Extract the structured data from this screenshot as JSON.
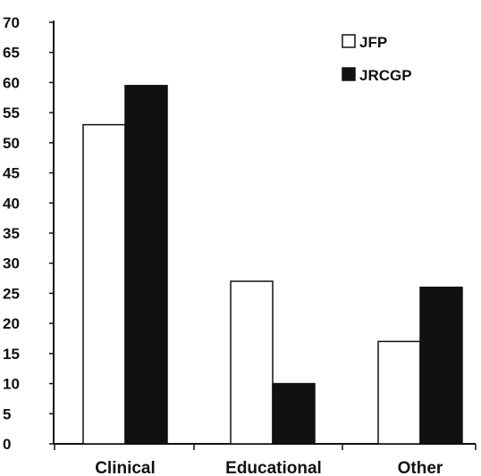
{
  "chart_data": {
    "type": "bar",
    "categories": [
      "Clinical",
      "Educational",
      "Other"
    ],
    "series": [
      {
        "name": "JFP",
        "values": [
          53,
          27,
          17
        ],
        "fill": "#ffffff",
        "stroke": "#111111"
      },
      {
        "name": "JRCGP",
        "values": [
          59.5,
          10,
          26
        ],
        "fill": "#111111",
        "stroke": "#111111"
      }
    ],
    "yticks": [
      "0",
      "5",
      "10",
      "15",
      "20",
      "25",
      "30",
      "35",
      "40",
      "45",
      "50",
      "55",
      "60",
      "65",
      "70"
    ],
    "ylim": [
      0,
      70
    ],
    "title": "",
    "xlabel": "",
    "ylabel": "",
    "grid": false,
    "legend_position": "top-right"
  }
}
